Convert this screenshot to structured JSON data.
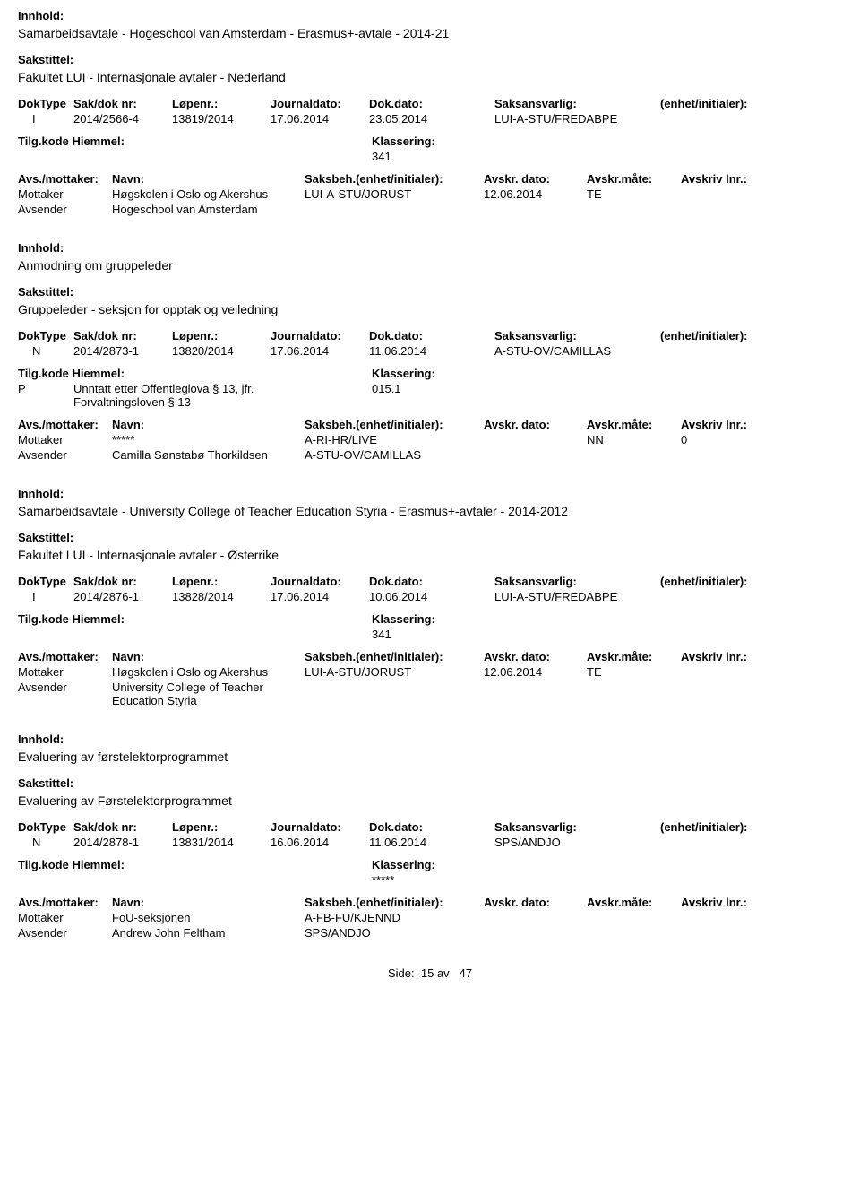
{
  "labels": {
    "innhold": "Innhold:",
    "sakstittel": "Sakstittel:",
    "doktype": "DokType",
    "sakdok": "Sak/dok nr:",
    "lopenr": "Løpenr.:",
    "journaldato": "Journaldato:",
    "dokdato": "Dok.dato:",
    "saksansvarlig": "Saksansvarlig:",
    "enhet_init": "(enhet/initialer):",
    "tilgkode": "Tilg.kode",
    "hiemmel": "Hiemmel:",
    "klassering": "Klassering:",
    "avs_mottaker": "Avs./mottaker:",
    "navn": "Navn:",
    "saksbeh_enhet": "Saksbeh.(enhet/initialer):",
    "avskr_dato": "Avskr. dato:",
    "avskr_mate": "Avskr.måte:",
    "avskriv_lnr": "Avskriv lnr.:"
  },
  "records": [
    {
      "innhold": "Samarbeidsavtale - Hogeschool van Amsterdam - Erasmus+-avtale - 2014-21",
      "sakstittel": "Fakultet LUI - Internasjonale avtaler - Nederland",
      "doktype": "I",
      "sakdok": "2014/2566-4",
      "lopenr": "13819/2014",
      "journaldato": "17.06.2014",
      "dokdato": "23.05.2014",
      "saksansvarlig": "LUI-A-STU/FREDABPE",
      "tilgkode": "",
      "hiemmel": "",
      "klassering": "341",
      "parties": [
        {
          "role": "Mottaker",
          "navn": "Høgskolen i Oslo og Akershus",
          "saksbeh": "LUI-A-STU/JORUST",
          "avskr_dato": "12.06.2014",
          "avskr_mate": "TE",
          "avskriv_lnr": ""
        },
        {
          "role": "Avsender",
          "navn": "Hogeschool van Amsterdam",
          "saksbeh": "",
          "avskr_dato": "",
          "avskr_mate": "",
          "avskriv_lnr": ""
        }
      ]
    },
    {
      "innhold": "Anmodning om gruppeleder",
      "sakstittel": "Gruppeleder - seksjon for opptak og veiledning",
      "doktype": "N",
      "sakdok": "2014/2873-1",
      "lopenr": "13820/2014",
      "journaldato": "17.06.2014",
      "dokdato": "11.06.2014",
      "saksansvarlig": "A-STU-OV/CAMILLAS",
      "tilgkode": "P",
      "hiemmel": "Unntatt etter Offentleglova § 13, jfr. Forvaltningsloven § 13",
      "klassering": "015.1",
      "parties": [
        {
          "role": "Mottaker",
          "navn": "*****",
          "saksbeh": "A-RI-HR/LIVE",
          "avskr_dato": "",
          "avskr_mate": "NN",
          "avskriv_lnr": "0"
        },
        {
          "role": "Avsender",
          "navn": "Camilla Sønstabø Thorkildsen",
          "saksbeh": "A-STU-OV/CAMILLAS",
          "avskr_dato": "",
          "avskr_mate": "",
          "avskriv_lnr": ""
        }
      ]
    },
    {
      "innhold": "Samarbeidsavtale - University College of Teacher Education Styria - Erasmus+-avtaler - 2014-2012",
      "sakstittel": "Fakultet LUI - Internasjonale avtaler - Østerrike",
      "doktype": "I",
      "sakdok": "2014/2876-1",
      "lopenr": "13828/2014",
      "journaldato": "17.06.2014",
      "dokdato": "10.06.2014",
      "saksansvarlig": "LUI-A-STU/FREDABPE",
      "tilgkode": "",
      "hiemmel": "",
      "klassering": "341",
      "parties": [
        {
          "role": "Mottaker",
          "navn": "Høgskolen i Oslo og Akershus",
          "saksbeh": "LUI-A-STU/JORUST",
          "avskr_dato": "12.06.2014",
          "avskr_mate": "TE",
          "avskriv_lnr": ""
        },
        {
          "role": "Avsender",
          "navn": "University College of Teacher Education Styria",
          "saksbeh": "",
          "avskr_dato": "",
          "avskr_mate": "",
          "avskriv_lnr": ""
        }
      ]
    },
    {
      "innhold": "Evaluering av førstelektorprogrammet",
      "sakstittel": "Evaluering av Førstelektorprogrammet",
      "doktype": "N",
      "sakdok": "2014/2878-1",
      "lopenr": "13831/2014",
      "journaldato": "16.06.2014",
      "dokdato": "11.06.2014",
      "saksansvarlig": "SPS/ANDJO",
      "tilgkode": "",
      "hiemmel": "",
      "klassering": "*****",
      "parties": [
        {
          "role": "Mottaker",
          "navn": "FoU-seksjonen",
          "saksbeh": "A-FB-FU/KJENND",
          "avskr_dato": "",
          "avskr_mate": "",
          "avskriv_lnr": ""
        },
        {
          "role": "Avsender",
          "navn": "Andrew John Feltham",
          "saksbeh": "SPS/ANDJO",
          "avskr_dato": "",
          "avskr_mate": "",
          "avskriv_lnr": ""
        }
      ]
    }
  ],
  "footer": {
    "side_label": "Side:",
    "page": "15",
    "av": "av",
    "total": "47"
  }
}
